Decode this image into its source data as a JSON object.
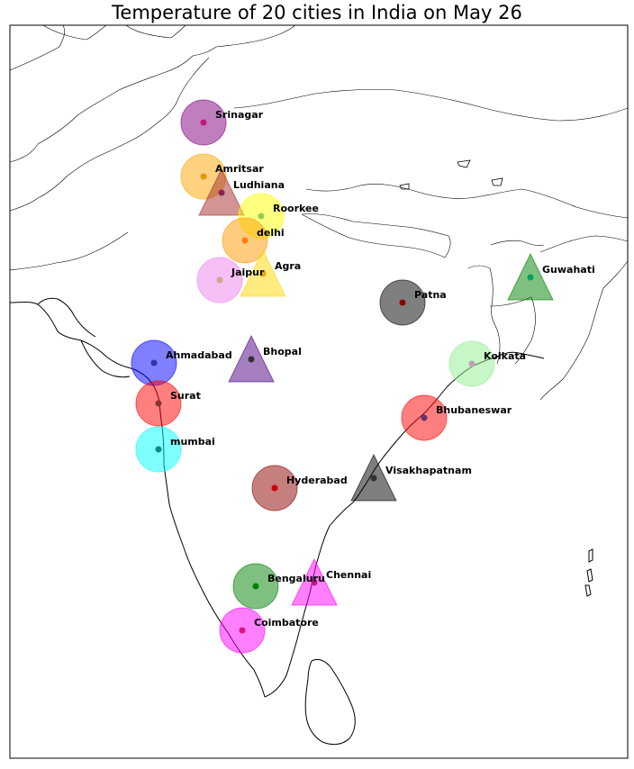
{
  "title": "Temperature of 20 cities in India on May 26",
  "cities": [
    {
      "name": "Srinagar",
      "shape": "circle",
      "color": "#800080",
      "dot": "#c71585"
    },
    {
      "name": "Amritsar",
      "shape": "circle",
      "color": "#ffa500",
      "dot": "#e59400"
    },
    {
      "name": "Ludhiana",
      "shape": "triangle",
      "color": "#a52a2a",
      "dot": "#8b2252"
    },
    {
      "name": "Roorkee",
      "shape": "circle",
      "color": "#ffff00",
      "dot": "#8fd14f"
    },
    {
      "name": "delhi",
      "shape": "circle",
      "color": "#ff9900",
      "dot": "#ff7f0e"
    },
    {
      "name": "Jaipur",
      "shape": "circle",
      "color": "#ee82ee",
      "dot": "#d2a48c"
    },
    {
      "name": "Agra",
      "shape": "triangle",
      "color": "#ffd700",
      "dot": "#e6a800"
    },
    {
      "name": "Patna",
      "shape": "circle",
      "color": "#000000",
      "dot": "#8b0000"
    },
    {
      "name": "Guwahati",
      "shape": "triangle",
      "color": "#008000",
      "dot": "#00a060"
    },
    {
      "name": "Ahmadabad",
      "shape": "circle",
      "color": "#0000ff",
      "dot": "#3333aa"
    },
    {
      "name": "Bhopal",
      "shape": "triangle",
      "color": "#4b0082",
      "dot": "#333333"
    },
    {
      "name": "Kolkata",
      "shape": "circle",
      "color": "#90ee90",
      "dot": "#c0a0b0"
    },
    {
      "name": "Surat",
      "shape": "circle",
      "color": "#ff0000",
      "dot": "#8b3030"
    },
    {
      "name": "Bhubaneswar",
      "shape": "circle",
      "color": "#ff0000",
      "dot": "#663366"
    },
    {
      "name": "mumbai",
      "shape": "circle",
      "color": "#00ffff",
      "dot": "#008b8b"
    },
    {
      "name": "Visakhapatnam",
      "shape": "triangle",
      "color": "#000000",
      "dot": "#333333"
    },
    {
      "name": "Hyderabad",
      "shape": "circle",
      "color": "#8b0000",
      "dot": "#cc0000"
    },
    {
      "name": "Bengaluru",
      "shape": "circle",
      "color": "#008000",
      "dot": "#008000"
    },
    {
      "name": "Chennai",
      "shape": "triangle",
      "color": "#ff00ff",
      "dot": "#c71585"
    },
    {
      "name": "Coimbatore",
      "shape": "circle",
      "color": "#ff00ff",
      "dot": "#e0107a"
    }
  ]
}
